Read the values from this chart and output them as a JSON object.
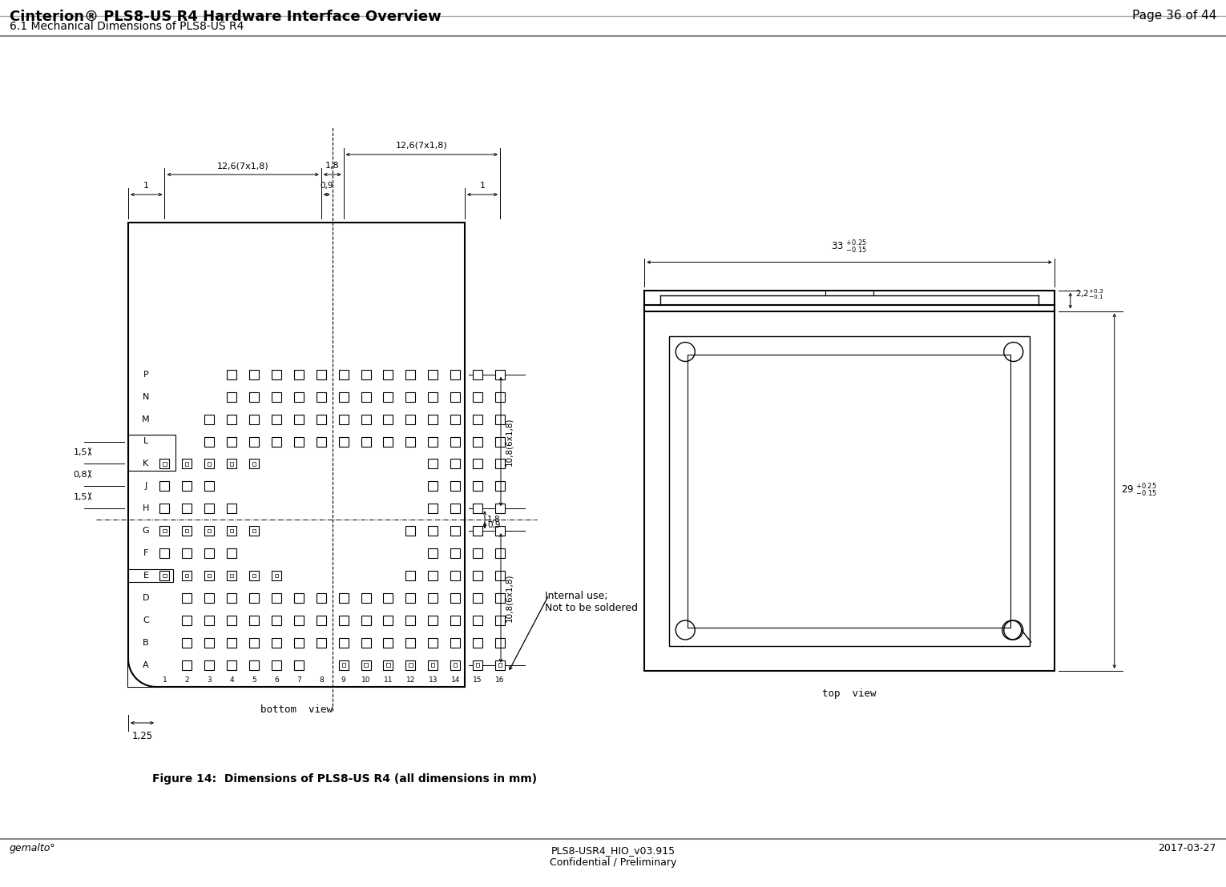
{
  "title_left": "Cinterion® PLS8-US R4 Hardware Interface Overview",
  "title_right": "Page 36 of 44",
  "subtitle": "6.1 Mechanical Dimensions of PLS8-US R4",
  "footer_left": "gemalto°",
  "footer_center": "PLS8-USR4_HIO_v03.915\nConfidential / Preliminary",
  "footer_right": "2017-03-27",
  "figure_caption": "Figure 14:  Dimensions of PLS8-US R4 (all dimensions in mm)",
  "internal_use_text": "Internal use;\nNot to be soldered",
  "bottom_view_label": "bottom  view",
  "top_view_label": "top  view",
  "bg_color": "#ffffff",
  "lc": "#000000"
}
